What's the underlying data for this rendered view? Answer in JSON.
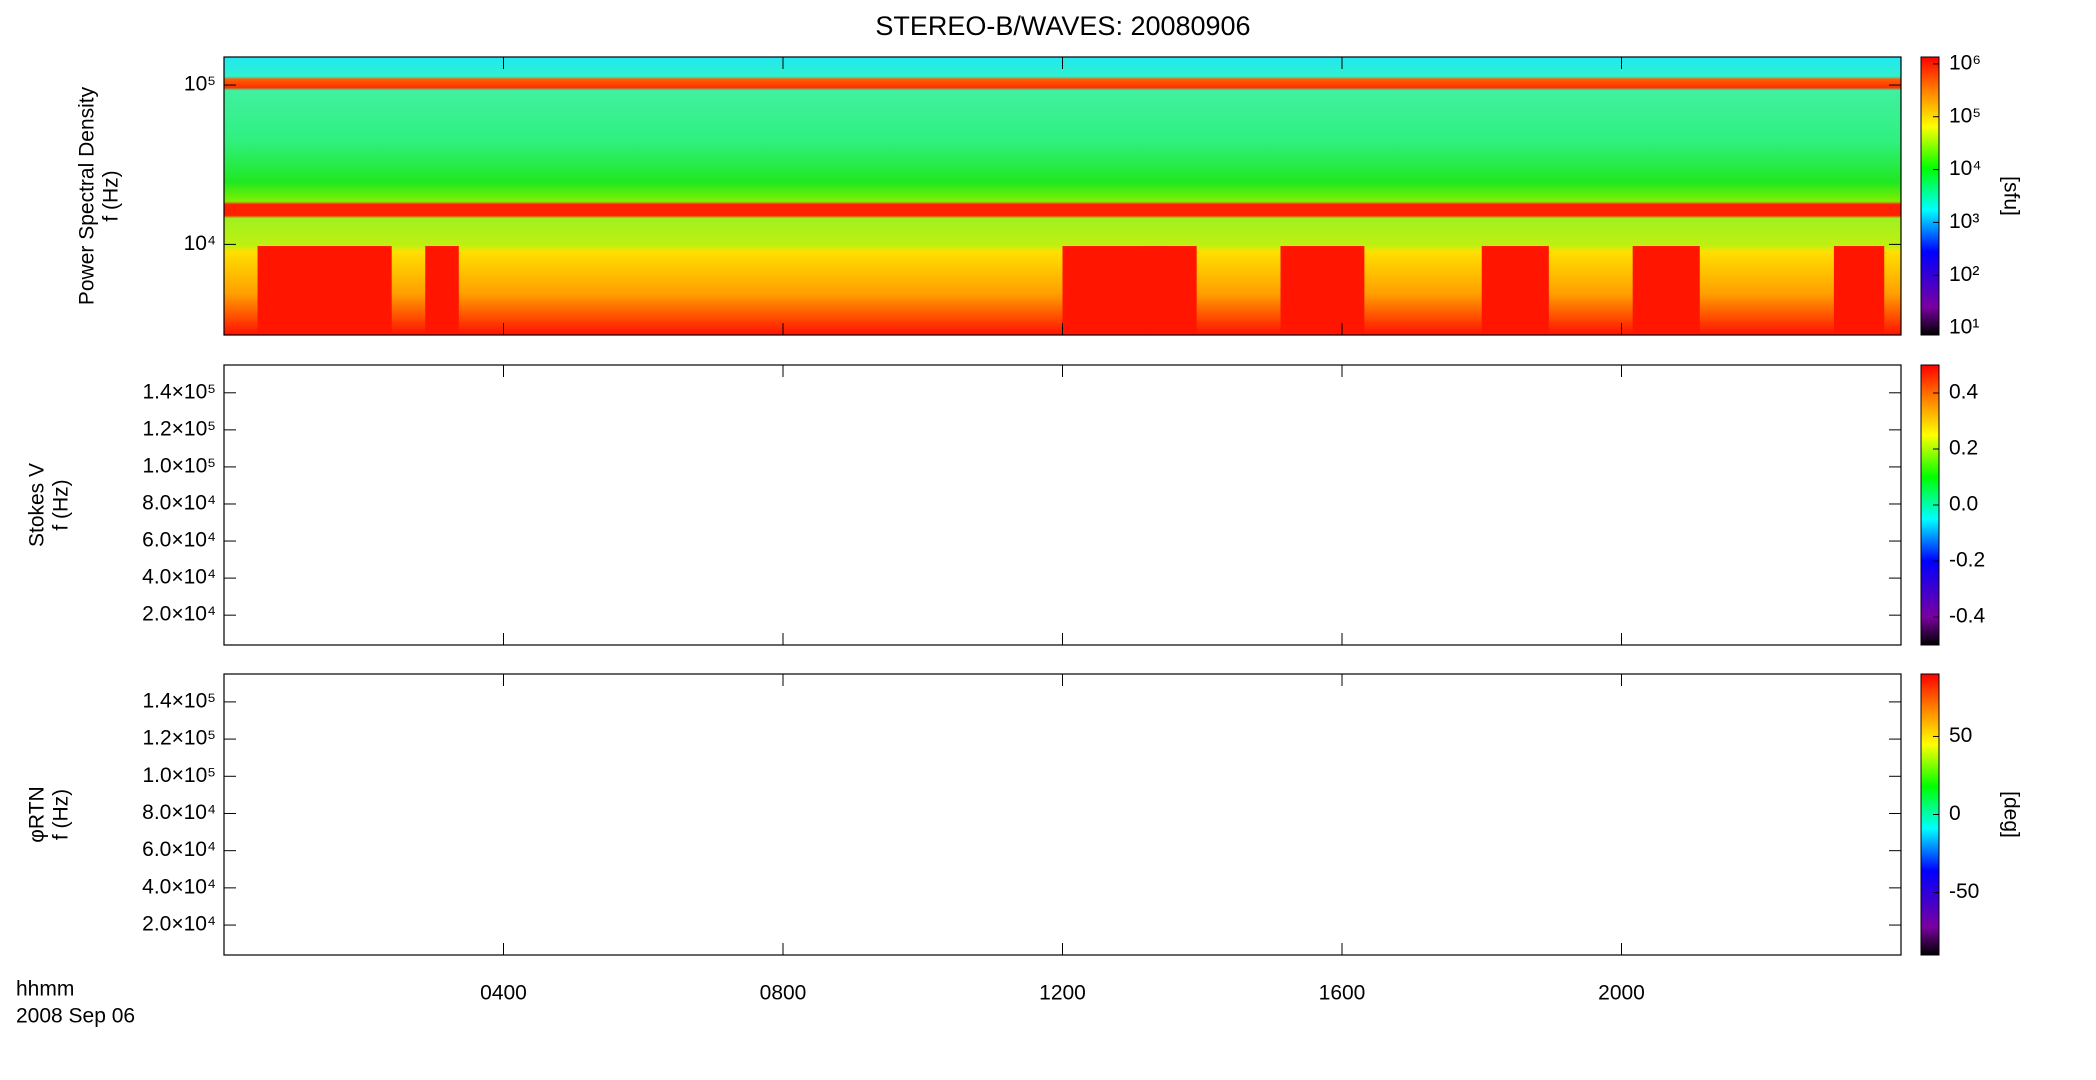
{
  "header": {
    "title": "STEREO-B/WAVES: 20080906"
  },
  "x_axis": {
    "xlim": [
      0,
      24
    ],
    "xticks": [
      {
        "value": 4,
        "label": "0400"
      },
      {
        "value": 8,
        "label": "0800"
      },
      {
        "value": 12,
        "label": "1200"
      },
      {
        "value": 16,
        "label": "1600"
      },
      {
        "value": 20,
        "label": "2000"
      }
    ],
    "label": "hhmm",
    "date": "2008 Sep 06"
  },
  "chart_data": [
    {
      "type": "heatmap",
      "ylabel": [
        "Power Spectral Density",
        "f (Hz)"
      ],
      "ylog": true,
      "ylim": [
        2700,
        150000
      ],
      "yticks": [
        {
          "value": 10000,
          "label": "10⁴"
        },
        {
          "value": 100000,
          "label": "10⁵"
        }
      ],
      "zlabel": "[sfu]",
      "zlog": true,
      "zlim": [
        7.4,
        1350000
      ],
      "zticks": [
        {
          "value": 10,
          "label": "10¹"
        },
        {
          "value": 100,
          "label": "10²"
        },
        {
          "value": 1000,
          "label": "10³"
        },
        {
          "value": 10000,
          "label": "10⁴"
        },
        {
          "value": 100000,
          "label": "10⁵"
        },
        {
          "value": 1000000,
          "label": "10⁶"
        }
      ]
    },
    {
      "type": "heatmap",
      "ylabel": [
        "Stokes V",
        "f (Hz)"
      ],
      "ylog": false,
      "ylim": [
        3900,
        155000
      ],
      "yticks": [
        {
          "value": 20000,
          "label": "2.0×10⁴"
        },
        {
          "value": 40000,
          "label": "4.0×10⁴"
        },
        {
          "value": 60000,
          "label": "6.0×10⁴"
        },
        {
          "value": 80000,
          "label": "8.0×10⁴"
        },
        {
          "value": 100000,
          "label": "1.0×10⁵"
        },
        {
          "value": 120000,
          "label": "1.2×10⁵"
        },
        {
          "value": 140000,
          "label": "1.4×10⁵"
        }
      ],
      "zlog": false,
      "zlim": [
        -0.5,
        0.5
      ],
      "zticks": [
        {
          "value": -0.4,
          "label": "-0.4"
        },
        {
          "value": -0.2,
          "label": "-0.2"
        },
        {
          "value": 0,
          "label": "0.0"
        },
        {
          "value": 0.2,
          "label": "0.2"
        },
        {
          "value": 0.4,
          "label": "0.4"
        }
      ]
    },
    {
      "type": "heatmap",
      "ylabel": [
        "φRTN",
        "f (Hz)"
      ],
      "ylog": false,
      "ylim": [
        3900,
        155000
      ],
      "yticks": [
        {
          "value": 20000,
          "label": "2.0×10⁴"
        },
        {
          "value": 40000,
          "label": "4.0×10⁴"
        },
        {
          "value": 60000,
          "label": "6.0×10⁴"
        },
        {
          "value": 80000,
          "label": "8.0×10⁴"
        },
        {
          "value": 100000,
          "label": "1.0×10⁵"
        },
        {
          "value": 120000,
          "label": "1.2×10⁵"
        },
        {
          "value": 140000,
          "label": "1.4×10⁵"
        }
      ],
      "zlabel": "[deg]",
      "zlog": false,
      "zlim": [
        -90,
        90
      ],
      "zticks": [
        -50,
        0,
        50
      ]
    }
  ]
}
